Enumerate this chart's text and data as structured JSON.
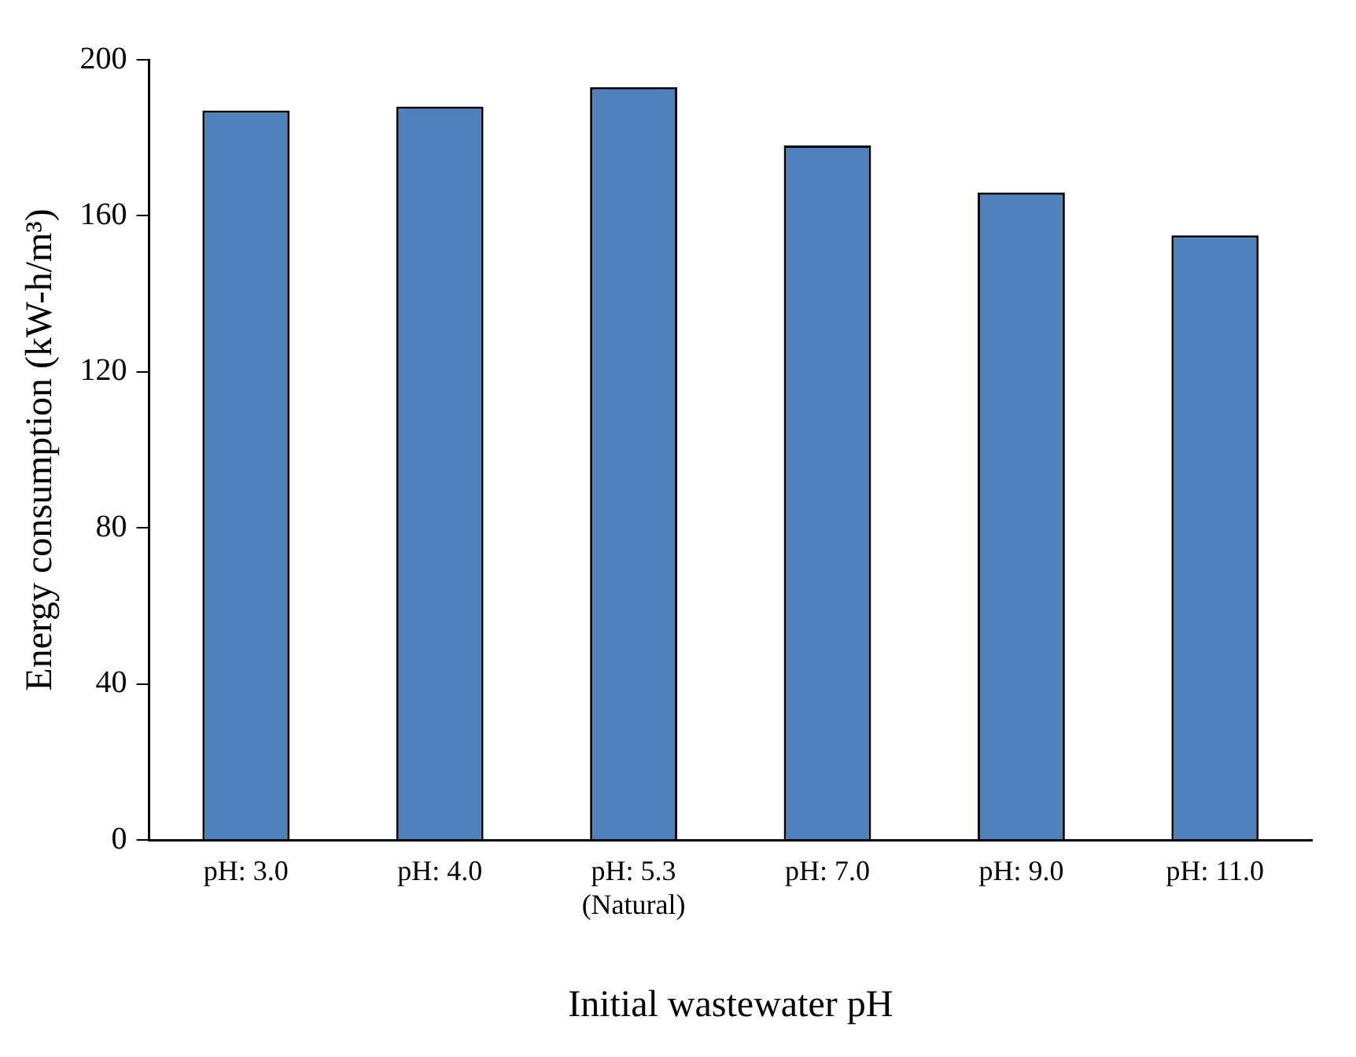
{
  "chart_data": {
    "type": "bar",
    "xlabel": "Initial wastewater pH",
    "ylabel": "Energy consumption (kW-h/m³)",
    "categories": [
      "pH: 3.0",
      "pH: 4.0",
      "pH: 5.3\n(Natural)",
      "pH: 7.0",
      "pH: 9.0",
      "pH: 11.0"
    ],
    "values": [
      187,
      188,
      193,
      178,
      166,
      155
    ],
    "color": "#4f81bd",
    "ylim": [
      0,
      200
    ],
    "yticks": [
      0,
      40,
      80,
      120,
      160,
      200
    ],
    "grid": false,
    "legend": false
  }
}
